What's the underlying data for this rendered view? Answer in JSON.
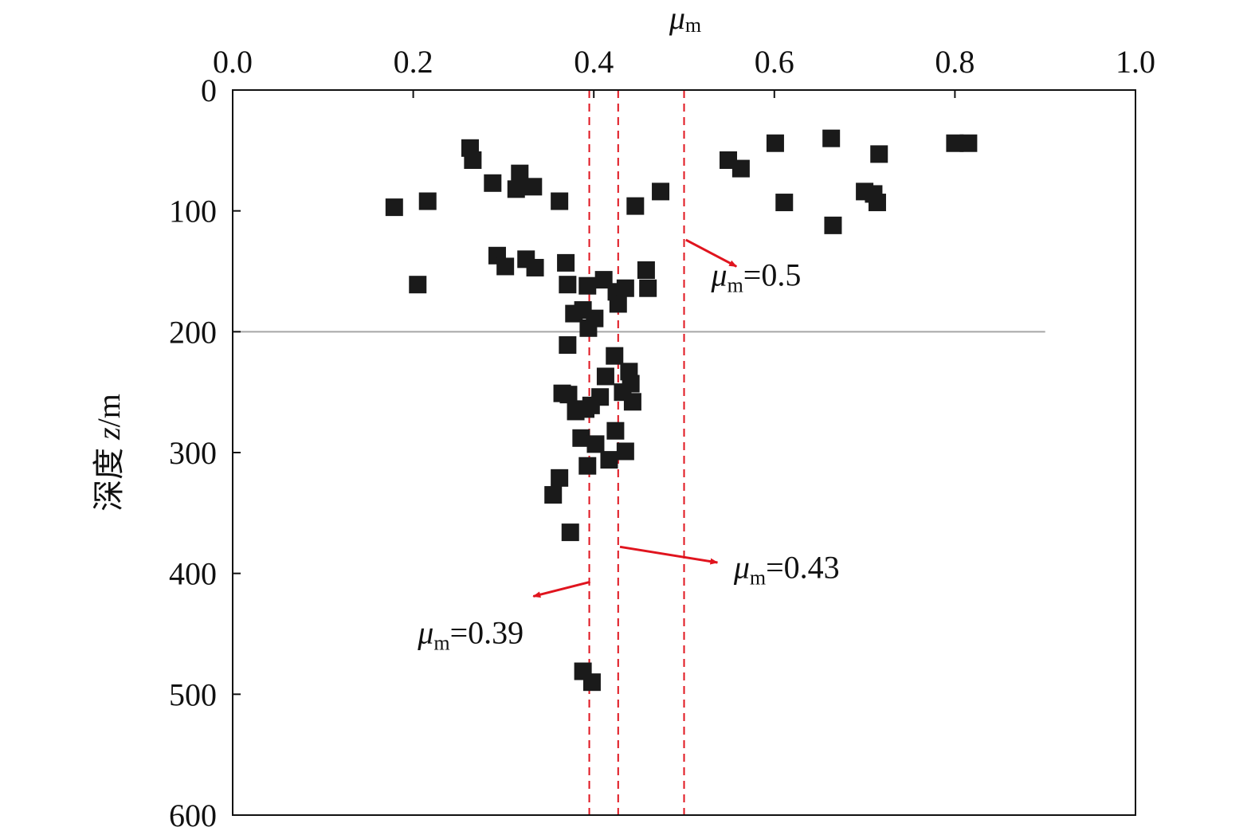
{
  "chart_data": {
    "type": "scatter",
    "x_axis": {
      "title_symbol": "μ",
      "title_subscript": "m",
      "range": [
        0.0,
        1.0
      ],
      "ticks": [
        0.0,
        0.2,
        0.4,
        0.6,
        0.8,
        1.0
      ],
      "tick_labels": [
        "0.0",
        "0.2",
        "0.4",
        "0.6",
        "0.8",
        "1.0"
      ],
      "position": "top"
    },
    "y_axis": {
      "title_prefix": "深度 ",
      "title_var": "z",
      "title_unit": "/m",
      "range": [
        0,
        600
      ],
      "ticks": [
        0,
        100,
        200,
        300,
        400,
        500,
        600
      ],
      "tick_labels": [
        "0",
        "100",
        "200",
        "300",
        "400",
        "500",
        "600"
      ],
      "inverted": true
    },
    "marker": {
      "shape": "square",
      "color": "#1a1a1a"
    },
    "points": [
      {
        "x": 0.263,
        "y": 48
      },
      {
        "x": 0.266,
        "y": 58
      },
      {
        "x": 0.288,
        "y": 77
      },
      {
        "x": 0.318,
        "y": 69
      },
      {
        "x": 0.314,
        "y": 82
      },
      {
        "x": 0.333,
        "y": 80
      },
      {
        "x": 0.362,
        "y": 92
      },
      {
        "x": 0.179,
        "y": 97
      },
      {
        "x": 0.216,
        "y": 92
      },
      {
        "x": 0.446,
        "y": 96
      },
      {
        "x": 0.474,
        "y": 84
      },
      {
        "x": 0.549,
        "y": 58
      },
      {
        "x": 0.563,
        "y": 65
      },
      {
        "x": 0.601,
        "y": 44
      },
      {
        "x": 0.663,
        "y": 40
      },
      {
        "x": 0.716,
        "y": 53
      },
      {
        "x": 0.8,
        "y": 44
      },
      {
        "x": 0.815,
        "y": 44
      },
      {
        "x": 0.7,
        "y": 84
      },
      {
        "x": 0.71,
        "y": 86
      },
      {
        "x": 0.714,
        "y": 93
      },
      {
        "x": 0.611,
        "y": 93
      },
      {
        "x": 0.665,
        "y": 112
      },
      {
        "x": 0.293,
        "y": 137
      },
      {
        "x": 0.302,
        "y": 146
      },
      {
        "x": 0.325,
        "y": 140
      },
      {
        "x": 0.335,
        "y": 147
      },
      {
        "x": 0.205,
        "y": 161
      },
      {
        "x": 0.369,
        "y": 143
      },
      {
        "x": 0.371,
        "y": 161
      },
      {
        "x": 0.393,
        "y": 162
      },
      {
        "x": 0.411,
        "y": 157
      },
      {
        "x": 0.425,
        "y": 167
      },
      {
        "x": 0.435,
        "y": 164
      },
      {
        "x": 0.458,
        "y": 149
      },
      {
        "x": 0.46,
        "y": 164
      },
      {
        "x": 0.427,
        "y": 177
      },
      {
        "x": 0.378,
        "y": 185
      },
      {
        "x": 0.388,
        "y": 182
      },
      {
        "x": 0.401,
        "y": 189
      },
      {
        "x": 0.394,
        "y": 197
      },
      {
        "x": 0.371,
        "y": 211
      },
      {
        "x": 0.423,
        "y": 220
      },
      {
        "x": 0.413,
        "y": 237
      },
      {
        "x": 0.439,
        "y": 233
      },
      {
        "x": 0.441,
        "y": 243
      },
      {
        "x": 0.432,
        "y": 250
      },
      {
        "x": 0.443,
        "y": 258
      },
      {
        "x": 0.365,
        "y": 251
      },
      {
        "x": 0.372,
        "y": 252
      },
      {
        "x": 0.38,
        "y": 266
      },
      {
        "x": 0.391,
        "y": 264
      },
      {
        "x": 0.397,
        "y": 261
      },
      {
        "x": 0.407,
        "y": 254
      },
      {
        "x": 0.424,
        "y": 282
      },
      {
        "x": 0.386,
        "y": 288
      },
      {
        "x": 0.402,
        "y": 293
      },
      {
        "x": 0.417,
        "y": 306
      },
      {
        "x": 0.435,
        "y": 299
      },
      {
        "x": 0.393,
        "y": 311
      },
      {
        "x": 0.362,
        "y": 321
      },
      {
        "x": 0.355,
        "y": 335
      },
      {
        "x": 0.374,
        "y": 366
      },
      {
        "x": 0.388,
        "y": 481
      },
      {
        "x": 0.398,
        "y": 490
      }
    ],
    "reference_lines": [
      {
        "x": 0.395,
        "style": "dashed",
        "color": "#e0141e"
      },
      {
        "x": 0.427,
        "style": "dashed",
        "color": "#e0141e"
      },
      {
        "x": 0.5,
        "style": "dashed",
        "color": "#e0141e"
      }
    ],
    "horizontal_line": {
      "y": 200,
      "x_range": [
        0.0,
        0.9
      ],
      "color": "#a6a6a6"
    },
    "annotations": [
      {
        "symbol": "μ",
        "subscript": "m",
        "value": "=0.5",
        "text_x": 0.53,
        "text_y": 162,
        "arrow_from": [
          0.502,
          124
        ],
        "arrow_to": [
          0.558,
          146
        ]
      },
      {
        "symbol": "μ",
        "subscript": "m",
        "value": "=0.43",
        "text_x": 0.555,
        "text_y": 404,
        "arrow_from": [
          0.429,
          378
        ],
        "arrow_to": [
          0.537,
          391
        ]
      },
      {
        "symbol": "μ",
        "subscript": "m",
        "value": "=0.39",
        "text_x": 0.205,
        "text_y": 458,
        "arrow_from": [
          0.396,
          407
        ],
        "arrow_to": [
          0.333,
          419
        ]
      }
    ],
    "annotation_color": "#e0141e",
    "grid": false,
    "legend": "none"
  }
}
